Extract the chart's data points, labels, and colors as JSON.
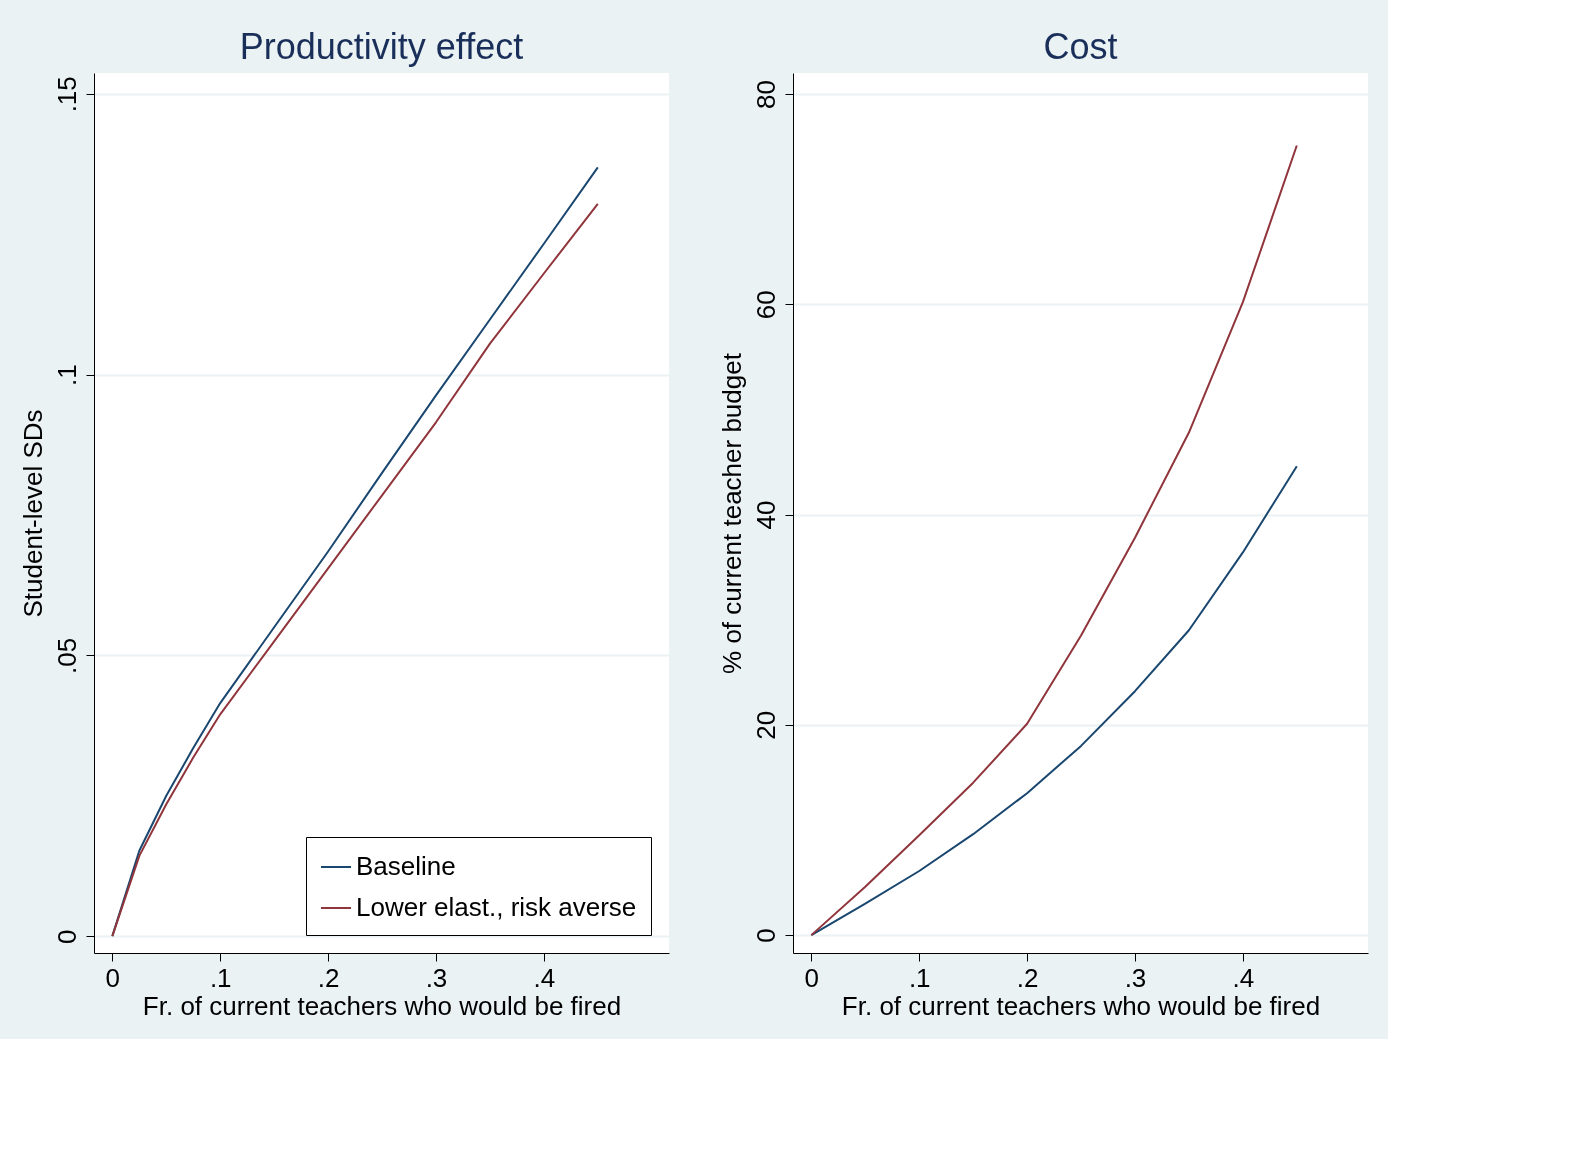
{
  "chart_data": [
    {
      "type": "line",
      "title": "Productivity effect",
      "xlabel": "Fr. of current teachers who would be fired",
      "ylabel": "Student-level SDs",
      "x": [
        0,
        0.025,
        0.05,
        0.075,
        0.1,
        0.15,
        0.2,
        0.25,
        0.3,
        0.35,
        0.4,
        0.45
      ],
      "series": [
        {
          "name": "Baseline",
          "color": "#1a476f",
          "values": [
            0,
            0.0152,
            0.025,
            0.0335,
            0.0415,
            0.055,
            0.0685,
            0.0825,
            0.0963,
            0.1098,
            0.1233,
            0.1369
          ]
        },
        {
          "name": "Lower elast., risk averse",
          "color": "#90353b",
          "values": [
            0,
            0.0143,
            0.0235,
            0.0318,
            0.0395,
            0.0525,
            0.0655,
            0.0785,
            0.0915,
            0.1055,
            0.118,
            0.1304
          ]
        }
      ],
      "xlim": [
        -0.017,
        0.516
      ],
      "ylim": [
        -0.003,
        0.1537
      ],
      "xticks": [
        0,
        {
          "value": 0.1,
          "label": ".1"
        },
        {
          "value": 0.2,
          "label": ".2"
        },
        {
          "value": 0.3,
          "label": ".3"
        },
        {
          "value": 0.4,
          "label": ".4"
        }
      ],
      "yticks": [
        0,
        {
          "value": 0.05,
          "label": ".05"
        },
        {
          "value": 0.1,
          "label": ".1"
        },
        {
          "value": 0.15,
          "label": ".15"
        }
      ],
      "grid": "y",
      "legend": "bottom right"
    },
    {
      "type": "line",
      "title": "Cost",
      "xlabel": "Fr. of current teachers who would be fired",
      "ylabel": "% of current teacher budget",
      "x": [
        0,
        0.05,
        0.1,
        0.15,
        0.2,
        0.25,
        0.3,
        0.35,
        0.4,
        0.45
      ],
      "series": [
        {
          "color": "#1a476f",
          "values": [
            0,
            3,
            6.1,
            9.6,
            13.5,
            18,
            23.2,
            29,
            36.4,
            44.6
          ]
        },
        {
          "color": "#90353b",
          "values": [
            0,
            4.6,
            9.5,
            14.5,
            20.1,
            28.5,
            37.8,
            47.8,
            60.2,
            75.1
          ]
        }
      ],
      "xlim": [
        -0.017,
        0.516
      ],
      "ylim": [
        -1.7,
        82
      ],
      "xticks": [
        0,
        {
          "value": 0.1,
          "label": ".1"
        },
        {
          "value": 0.2,
          "label": ".2"
        },
        {
          "value": 0.3,
          "label": ".3"
        },
        {
          "value": 0.4,
          "label": ".4"
        }
      ],
      "yticks": [
        0,
        20,
        40,
        60,
        80
      ],
      "grid": "y",
      "legend": false
    }
  ]
}
